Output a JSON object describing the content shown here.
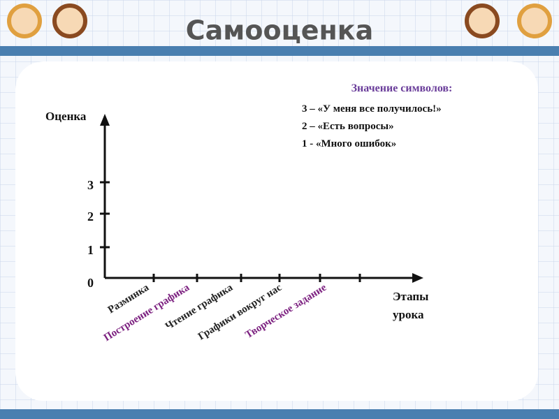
{
  "header": {
    "title": "Самооценка"
  },
  "legend": {
    "title": "Значение символов:",
    "lines": [
      "3 – «У меня все получилось!»",
      "2 – «Есть вопросы»",
      "1  - «Много ошибок»"
    ]
  },
  "axis": {
    "y_label": "Оценка",
    "x_label": [
      "Этапы",
      "урока"
    ],
    "y_ticks": [
      0,
      1,
      2,
      3
    ],
    "stages": [
      {
        "label": "Разминка",
        "color": "#222222"
      },
      {
        "label": "Построение графика",
        "color": "#7b1f7f"
      },
      {
        "label": "Чтение графика",
        "color": "#222222"
      },
      {
        "label": "Графики вокруг нас",
        "color": "#222222"
      },
      {
        "label": "Творческое задание",
        "color": "#7b1f7f"
      }
    ]
  }
}
